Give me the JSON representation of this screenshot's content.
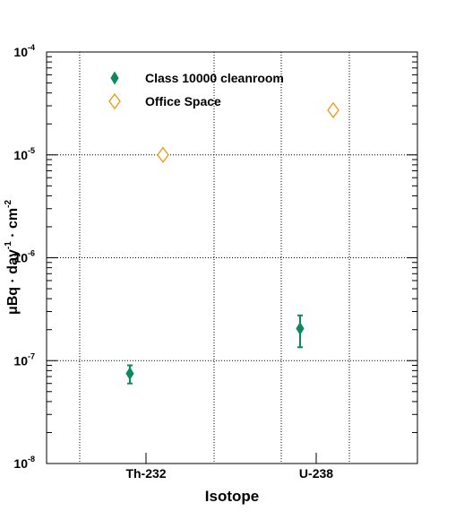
{
  "chart_data": {
    "type": "scatter",
    "xlabel": "Isotope",
    "ylabel": [
      "μBq · day",
      "-1",
      " · cm",
      "-2"
    ],
    "categories": [
      "Th-232",
      "U-238"
    ],
    "log_y": true,
    "grid": true,
    "legend_position": "upper left",
    "ylim": [
      1e-08,
      0.0001
    ],
    "yticks": [
      {
        "value": 1e-08,
        "label": "10",
        "exp": "-8"
      },
      {
        "value": 1e-07,
        "label": "10",
        "exp": "-7"
      },
      {
        "value": 1e-06,
        "label": "10",
        "exp": "-6"
      },
      {
        "value": 1e-05,
        "label": "10",
        "exp": "-5"
      },
      {
        "value": 0.0001,
        "label": "10",
        "exp": "-4"
      }
    ],
    "series": [
      {
        "name": "Class 10000 cleanroom",
        "color": "#0b8a5f",
        "marker": "filled",
        "values": [
          7.5e-08,
          2.05e-07
        ],
        "errors": [
          1.5e-08,
          7e-08
        ]
      },
      {
        "name": "Office Space",
        "color": "#f0960f",
        "marker": "open",
        "values": [
          1e-05,
          2.72e-05
        ]
      }
    ]
  }
}
